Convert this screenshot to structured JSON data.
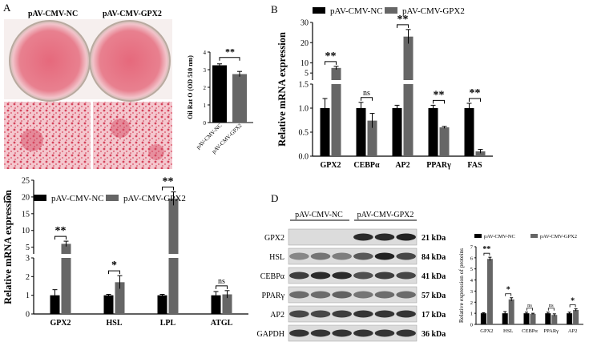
{
  "panels": {
    "A": {
      "letter": "A",
      "dish_labels": [
        "pAV-CMV-NC",
        "pAV-CMV-GPX2"
      ],
      "colors": {
        "stain": "#d9485f",
        "stain_light": "#efb3bd",
        "dish_rim": "#c7b8ad"
      },
      "chart_data": {
        "type": "bar",
        "categories": [
          "pAV-CMV-NC",
          "pAV-CMV-GPX2"
        ],
        "values": [
          3.25,
          2.75
        ],
        "errors": [
          0.08,
          0.15
        ],
        "ylabel": "Oil Rat O (OD 510 nm)",
        "ylim": [
          0,
          4
        ],
        "yticks": [
          "0",
          "1",
          "2",
          "3",
          "4"
        ],
        "significance": "**",
        "colors": [
          "#000000",
          "#666666"
        ]
      }
    },
    "B": {
      "letter": "B",
      "chart_data": {
        "type": "bar",
        "categories": [
          "GPX2",
          "CEBPα",
          "AP2",
          "PPARγ",
          "FAS"
        ],
        "series": [
          {
            "name": "pAV-CMV-NC",
            "values": [
              1.0,
              1.0,
              1.0,
              1.0,
              1.0
            ],
            "errors": [
              0.2,
              0.12,
              0.06,
              0.06,
              0.1
            ],
            "color": "#000000"
          },
          {
            "name": "pAV-CMV-GPX2",
            "values": [
              7.5,
              0.74,
              23,
              0.6,
              0.1
            ],
            "errors": [
              0.8,
              0.15,
              3.5,
              0.02,
              0.04
            ],
            "color": "#666666"
          }
        ],
        "ylabel": "Relative mRNA expression",
        "axis_break": {
          "lower": [
            0,
            1.5
          ],
          "upper": [
            1.5,
            30
          ]
        },
        "yticks_lower": [
          "0.0",
          "0.5",
          "1.0",
          "1.5"
        ],
        "yticks_upper": [
          "5",
          "10",
          "20",
          "30"
        ],
        "significance": [
          "**",
          "ns",
          "**",
          "**",
          "**"
        ]
      }
    },
    "C": {
      "letter": "C",
      "chart_data": {
        "type": "bar",
        "categories": [
          "GPX2",
          "HSL",
          "LPL",
          "ATGL"
        ],
        "series": [
          {
            "name": "pAV-CMV-NC",
            "values": [
              1.0,
              1.0,
              1.0,
              1.0
            ],
            "errors": [
              0.3,
              0.05,
              0.05,
              0.2
            ],
            "color": "#000000"
          },
          {
            "name": "pAV-CMV-GPX2",
            "values": [
              6.0,
              1.7,
              19.5,
              1.05
            ],
            "errors": [
              0.8,
              0.35,
              2.0,
              0.2
            ],
            "color": "#666666"
          }
        ],
        "ylabel": "Relative mRNA expression",
        "axis_break": {
          "lower": [
            0,
            3
          ],
          "upper": [
            3,
            25
          ]
        },
        "yticks_lower": [
          "0",
          "1",
          "2",
          "3"
        ],
        "yticks_upper": [
          "5",
          "10",
          "15",
          "20",
          "25"
        ],
        "significance": [
          "**",
          "*",
          "**",
          "ns"
        ]
      }
    },
    "D": {
      "letter": "D",
      "blot_groups": [
        "pAV-CMV-NC",
        "pAV-CMV-GPX2"
      ],
      "blots": [
        {
          "protein": "GPX2",
          "kda": "21 kDa",
          "intensities": [
            0.0,
            0.0,
            0.0,
            0.85,
            0.85,
            0.9
          ]
        },
        {
          "protein": "HSL",
          "kda": "84 kDa",
          "intensities": [
            0.35,
            0.45,
            0.4,
            0.6,
            0.9,
            0.7
          ]
        },
        {
          "protein": "CEBPα",
          "kda": "41 kDa",
          "intensities": [
            0.75,
            0.85,
            0.85,
            0.65,
            0.75,
            0.7
          ]
        },
        {
          "protein": "PPARγ",
          "kda": "57 kDa",
          "intensities": [
            0.5,
            0.5,
            0.55,
            0.45,
            0.5,
            0.5
          ]
        },
        {
          "protein": "AP2",
          "kda": "17 kDa",
          "intensities": [
            0.7,
            0.7,
            0.75,
            0.8,
            0.8,
            0.8
          ]
        },
        {
          "protein": "GAPDH",
          "kda": "36 kDa",
          "intensities": [
            0.8,
            0.8,
            0.8,
            0.8,
            0.8,
            0.8
          ]
        }
      ],
      "chart_data": {
        "type": "bar",
        "categories": [
          "GPX2",
          "HSL",
          "CEBPα",
          "PPARγ",
          "AP2"
        ],
        "series": [
          {
            "name": "pAV-CMV-NC",
            "values": [
              1.0,
              1.0,
              1.0,
              1.0,
              1.0
            ],
            "errors": [
              0.05,
              0.15,
              0.1,
              0.1,
              0.1
            ],
            "color": "#000000"
          },
          {
            "name": "pAV-CMV-GPX2",
            "values": [
              5.9,
              2.25,
              0.95,
              0.85,
              1.3
            ],
            "errors": [
              0.15,
              0.15,
              0.05,
              0.1,
              0.1
            ],
            "color": "#666666"
          }
        ],
        "ylabel": "Relative expression of proteins",
        "ylim": [
          0,
          7
        ],
        "yticks": [
          "0",
          "1",
          "2",
          "3",
          "4",
          "5",
          "6",
          "7"
        ],
        "significance": [
          "**",
          "*",
          "ns",
          "ns",
          "*"
        ]
      }
    }
  }
}
